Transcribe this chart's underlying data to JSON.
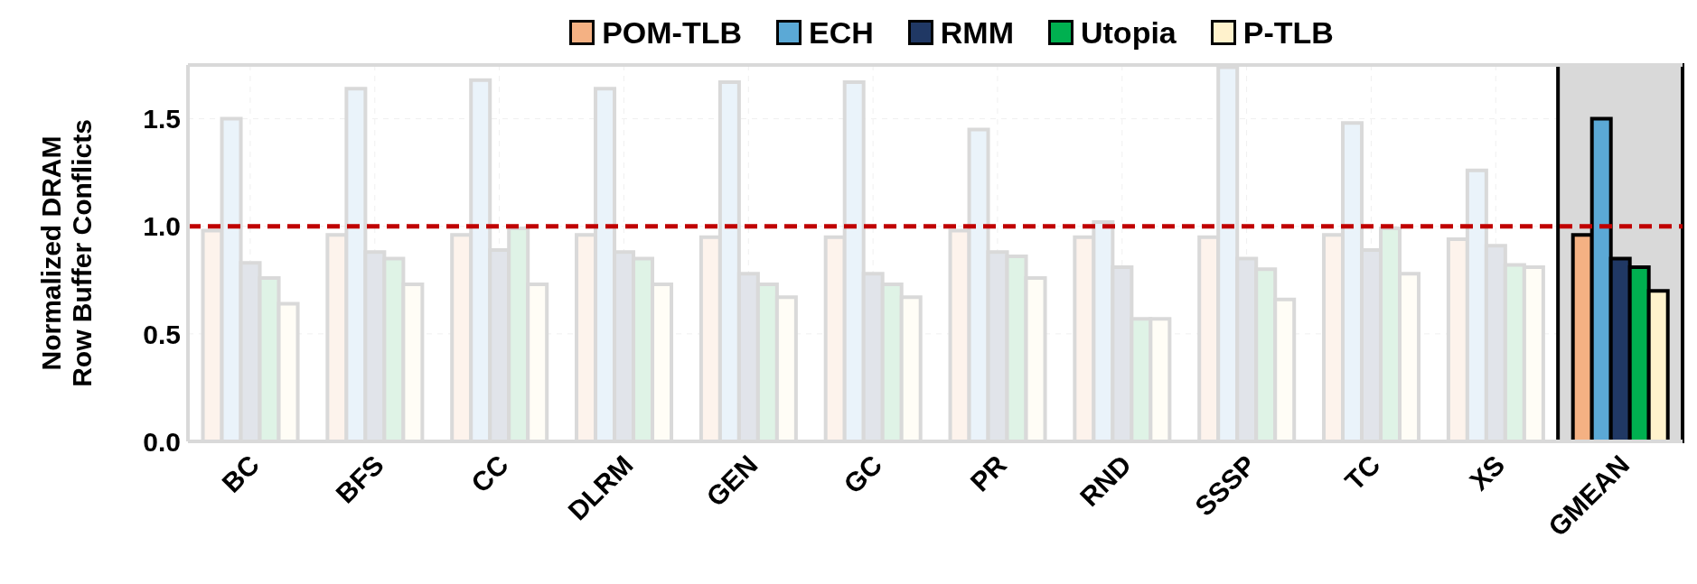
{
  "chart_data": {
    "type": "bar",
    "ylabel": "Normalized DRAM\nRow Buffer Conflicts",
    "categories": [
      "BC",
      "BFS",
      "CC",
      "DLRM",
      "GEN",
      "GC",
      "PR",
      "RND",
      "SSSP",
      "TC",
      "XS",
      "GMEAN"
    ],
    "series": [
      {
        "name": "POM-TLB",
        "color": "#f4b183",
        "colors": [
          "#fdf3ec",
          "#fdf3ec",
          "#fdf3ec",
          "#fdf3ec",
          "#fdf3ec",
          "#fdf3ec",
          "#fdf3ec",
          "#fdf3ec",
          "#fdf3ec",
          "#fdf3ec",
          "#fdf3ec",
          "#f4b183"
        ],
        "values": [
          0.98,
          0.96,
          0.96,
          0.96,
          0.95,
          0.95,
          0.98,
          0.95,
          0.95,
          0.96,
          0.94,
          0.96
        ]
      },
      {
        "name": "ECH",
        "color": "#5ba9d6",
        "colors": [
          "#eaf3fa",
          "#eaf3fa",
          "#eaf3fa",
          "#eaf3fa",
          "#eaf3fa",
          "#eaf3fa",
          "#eaf3fa",
          "#eaf3fa",
          "#eaf3fa",
          "#eaf3fa",
          "#eaf3fa",
          "#5ba9d6"
        ],
        "values": [
          1.5,
          1.64,
          1.68,
          1.64,
          1.67,
          1.67,
          1.45,
          1.02,
          1.74,
          1.48,
          1.26,
          1.5
        ]
      },
      {
        "name": "RMM",
        "color": "#203864",
        "colors": [
          "#e1e4ea",
          "#e1e4ea",
          "#e1e4ea",
          "#e1e4ea",
          "#e1e4ea",
          "#e1e4ea",
          "#e1e4ea",
          "#e1e4ea",
          "#e1e4ea",
          "#e1e4ea",
          "#e1e4ea",
          "#203864"
        ],
        "values": [
          0.83,
          0.88,
          0.89,
          0.88,
          0.78,
          0.78,
          0.88,
          0.81,
          0.85,
          0.89,
          0.91,
          0.85
        ]
      },
      {
        "name": "Utopia",
        "color": "#00b050",
        "colors": [
          "#dff3e6",
          "#dff3e6",
          "#dff3e6",
          "#dff3e6",
          "#dff3e6",
          "#dff3e6",
          "#dff3e6",
          "#dff3e6",
          "#dff3e6",
          "#dff3e6",
          "#dff3e6",
          "#00b050"
        ],
        "values": [
          0.76,
          0.85,
          0.99,
          0.85,
          0.73,
          0.73,
          0.86,
          0.57,
          0.8,
          0.99,
          0.82,
          0.81
        ]
      },
      {
        "name": "P-TLB",
        "color": "#fff2cc",
        "colors": [
          "#fffdf6",
          "#fffdf6",
          "#fffdf6",
          "#fffdf6",
          "#fffdf6",
          "#fffdf6",
          "#fffdf6",
          "#fffdf6",
          "#fffdf6",
          "#fffdf6",
          "#fffdf6",
          "#fff2cc"
        ],
        "values": [
          0.64,
          0.73,
          0.73,
          0.73,
          0.67,
          0.67,
          0.76,
          0.57,
          0.66,
          0.78,
          0.81,
          0.7
        ]
      }
    ],
    "ylim": [
      0,
      1.75
    ],
    "yticks": [
      {
        "value": 0,
        "label": "0.0"
      },
      0.5,
      {
        "value": 1,
        "label": "1.0"
      },
      1.5
    ],
    "ref_lines": [
      {
        "axis": "y",
        "value": 1,
        "color": "#c00000",
        "line_style": "dashed"
      }
    ],
    "bands": [
      {
        "axis": "x",
        "from": "GMEAN",
        "to": "GMEAN",
        "color": "#d9d9d9"
      }
    ],
    "grid": true,
    "legend": "top"
  }
}
